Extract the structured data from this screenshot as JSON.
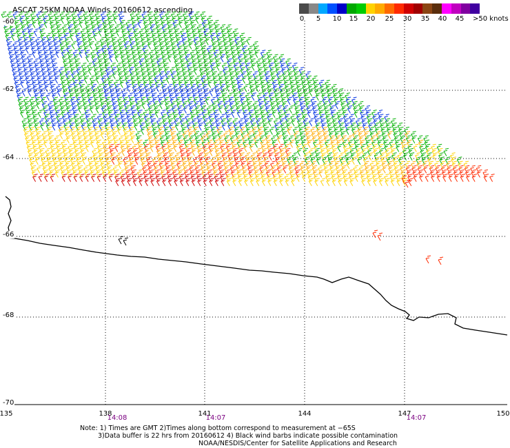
{
  "title": "ASCAT 25KM NOAA Winds 20160612 ascending",
  "colorbar": {
    "colors": [
      "#4a4a4a",
      "#888888",
      "#00a8ff",
      "#0050ff",
      "#0000c8",
      "#00a800",
      "#00cc00",
      "#ffd200",
      "#ffaa00",
      "#ff6a00",
      "#ff2a00",
      "#d00000",
      "#a00000",
      "#8b4513",
      "#5a2d0c",
      "#ff00ff",
      "#c000c0",
      "#8000a0",
      "#4000a0"
    ],
    "ticks": [
      "0",
      "5",
      "10",
      "15",
      "20",
      "25",
      "30",
      "35",
      "40",
      "45"
    ],
    "units": ">50 knots"
  },
  "map": {
    "lat_labels": [
      "-60",
      "-62",
      "-64",
      "-66",
      "-68",
      "-70"
    ],
    "lon_labels": [
      "135",
      "138",
      "141",
      "144",
      "147",
      "150"
    ],
    "times": [
      "14:08",
      "14:07",
      "14:07"
    ],
    "grid": true,
    "coastline_color": "#000000"
  },
  "notes": [
    "Note: 1) Times are GMT 2)Times along bottom correspond to measurement at −65S",
    "3)Data buffer is 22 hrs from 20160612 4) Black wind barbs indicate possible contamination",
    "NOAA/NESDIS/Center for Satellite Applications and Research"
  ]
}
